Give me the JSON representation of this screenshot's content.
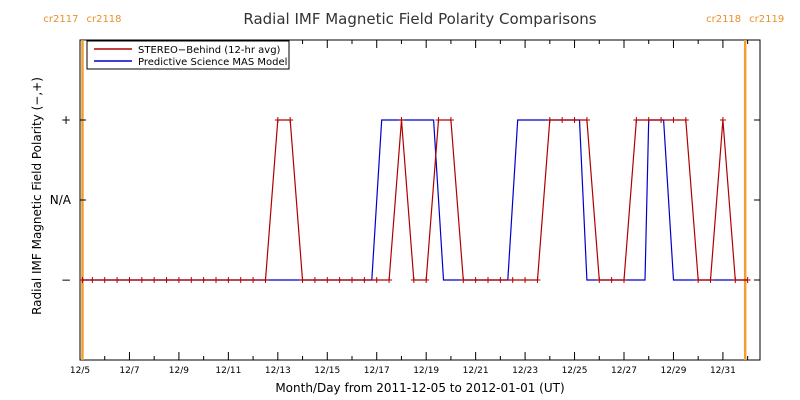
{
  "chart_data": {
    "type": "line",
    "title": "Radial IMF Magnetic Field Polarity Comparisons",
    "xlabel": "Month/Day from 2011-12-05 to 2012-01-01 (UT)",
    "ylabel": "Radial IMF Magnetic Field Polarity (−,+)",
    "x_unit": "day",
    "xlim": [
      0.0,
      27.5
    ],
    "x_tick_values": [
      0.0,
      2.0,
      4.0,
      6.0,
      8.0,
      10.0,
      12.0,
      14.0,
      16.0,
      18.0,
      20.0,
      22.0,
      24.0,
      26.0
    ],
    "x_tick_labels": [
      "12/5",
      "12/7",
      "12/9",
      "12/11",
      "12/13",
      "12/15",
      "12/17",
      "12/19",
      "12/21",
      "12/23",
      "12/25",
      "12/27",
      "12/29",
      "12/31"
    ],
    "y_levels": [
      -1,
      0,
      1
    ],
    "y_tick_labels": [
      "−",
      "N/A",
      "+"
    ],
    "ylim": [
      -2,
      2
    ],
    "carrington_rotations": [
      {
        "x": 0.1,
        "labels": [
          "cr2117",
          "cr2118"
        ]
      },
      {
        "x": 26.9,
        "labels": [
          "cr2118",
          "cr2119"
        ]
      }
    ],
    "legend_position": "top-left",
    "series": [
      {
        "name": "STEREO−Behind (12-hr avg)",
        "color": "#b00000",
        "marker": "+",
        "x": [
          0.1,
          0.5,
          1.0,
          1.5,
          2.0,
          2.5,
          3.0,
          3.5,
          4.0,
          4.5,
          5.0,
          5.5,
          6.0,
          6.5,
          7.0,
          7.5,
          8.0,
          8.5,
          9.0,
          9.5,
          10.0,
          10.5,
          11.0,
          11.5,
          12.0,
          12.5,
          13.0,
          13.5,
          14.0,
          14.5,
          15.0,
          15.5,
          16.0,
          16.5,
          17.0,
          17.5,
          18.0,
          18.5,
          19.0,
          19.5,
          20.0,
          20.5,
          21.0,
          21.5,
          22.0,
          22.5,
          23.0,
          23.5,
          24.0,
          24.5,
          25.0,
          25.5,
          26.0,
          26.5,
          27.0
        ],
        "y": [
          -1,
          -1,
          -1,
          -1,
          -1,
          -1,
          -1,
          -1,
          -1,
          -1,
          -1,
          -1,
          -1,
          -1,
          -1,
          -1,
          1,
          1,
          -1,
          -1,
          -1,
          -1,
          -1,
          -1,
          -1,
          -1,
          1,
          -1,
          -1,
          1,
          1,
          -1,
          -1,
          -1,
          -1,
          -1,
          -1,
          -1,
          1,
          1,
          1,
          1,
          -1,
          -1,
          -1,
          1,
          1,
          1,
          1,
          1,
          -1,
          -1,
          1,
          -1,
          -1
        ]
      },
      {
        "name": "Predictive Science MAS Model",
        "color": "#0000cc",
        "x": [
          0.1,
          11.8,
          12.2,
          14.3,
          14.7,
          17.3,
          17.7,
          20.2,
          20.5,
          22.85,
          23.0,
          23.6,
          24.0,
          27.0
        ],
        "y": [
          -1,
          -1,
          1,
          1,
          -1,
          -1,
          1,
          1,
          -1,
          -1,
          1,
          1,
          -1,
          -1
        ]
      }
    ]
  }
}
